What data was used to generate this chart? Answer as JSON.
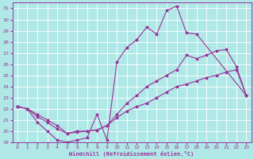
{
  "xlabel": "Windchill (Refroidissement éolien,°C)",
  "bg_color": "#b0e8e8",
  "grid_color": "#ffffff",
  "line_color": "#993399",
  "xlim": [
    -0.5,
    23.5
  ],
  "ylim": [
    19,
    31.5
  ],
  "xticks": [
    0,
    1,
    2,
    3,
    4,
    5,
    6,
    7,
    8,
    9,
    10,
    11,
    12,
    13,
    14,
    15,
    16,
    17,
    18,
    19,
    20,
    21,
    22,
    23
  ],
  "yticks": [
    19,
    20,
    21,
    22,
    23,
    24,
    25,
    26,
    27,
    28,
    29,
    30,
    31
  ],
  "line_upper_x": [
    0,
    1,
    2,
    3,
    4,
    5,
    6,
    7,
    8,
    9,
    10,
    11,
    12,
    13,
    14,
    15,
    16,
    17,
    18,
    23
  ],
  "line_upper_y": [
    22.2,
    22.0,
    20.8,
    20.0,
    19.2,
    19.0,
    19.2,
    19.4,
    21.5,
    19.2,
    26.2,
    27.5,
    28.2,
    29.3,
    28.7,
    30.8,
    31.2,
    28.8,
    28.7,
    23.2
  ],
  "line_middle_x": [
    0,
    1,
    2,
    3,
    4,
    5,
    6,
    7,
    8,
    9,
    10,
    11,
    12,
    13,
    14,
    15,
    16,
    17,
    18,
    19,
    20,
    21,
    22,
    23
  ],
  "line_middle_y": [
    22.2,
    22.0,
    21.3,
    20.8,
    20.2,
    19.8,
    19.9,
    20.0,
    20.1,
    20.5,
    21.5,
    22.5,
    23.2,
    24.0,
    24.5,
    25.0,
    25.5,
    26.8,
    26.5,
    26.8,
    27.2,
    27.3,
    25.8,
    23.2
  ],
  "line_lower_x": [
    0,
    1,
    2,
    3,
    4,
    5,
    6,
    7,
    8,
    9,
    10,
    11,
    12,
    13,
    14,
    15,
    16,
    17,
    18,
    19,
    20,
    21,
    22,
    23
  ],
  "line_lower_y": [
    22.2,
    22.0,
    21.5,
    21.0,
    20.5,
    19.8,
    20.0,
    20.0,
    20.1,
    20.5,
    21.2,
    21.8,
    22.2,
    22.5,
    23.0,
    23.5,
    24.0,
    24.2,
    24.5,
    24.8,
    25.0,
    25.3,
    25.5,
    23.2
  ]
}
